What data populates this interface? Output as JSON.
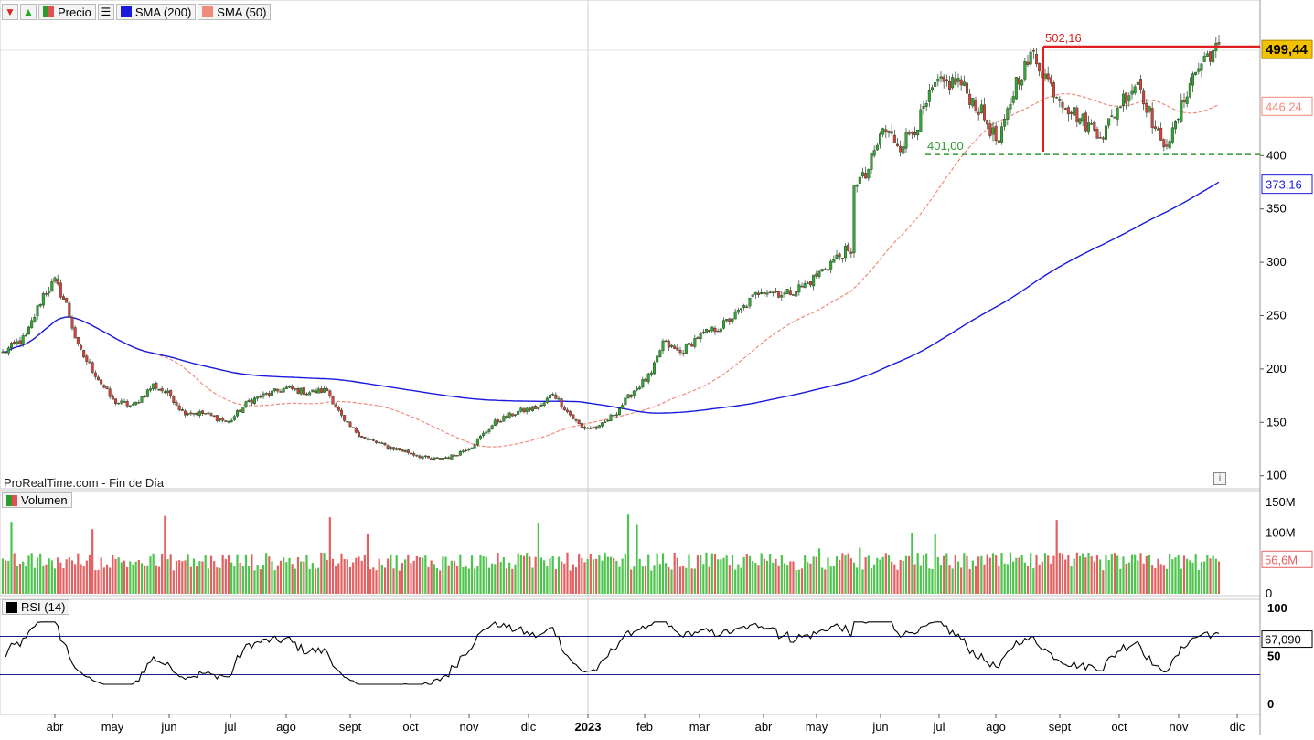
{
  "toolbar": {
    "price_label": "Precio",
    "sma200_label": "SMA (200)",
    "sma50_label": "SMA (50)",
    "sma200_color": "#1a1adc",
    "sma50_color": "#f08a7a"
  },
  "watermark": "ProRealTime.com - Fin de Día",
  "chart_data": [
    {
      "type": "candlestick",
      "pane": "price",
      "y_axis_ticks": [
        100,
        150,
        200,
        250,
        300,
        350,
        400
      ],
      "ylim": [
        95,
        540
      ],
      "current_price_label": "499,44",
      "sma50_value_label": "446,24",
      "sma200_value_label": "373,16",
      "resistance": {
        "value": 502.16,
        "label": "502,16",
        "color": "#e02020"
      },
      "support": {
        "value": 401.0,
        "label": "401,00",
        "color": "#2e9a2e"
      },
      "x_axis_ticks": [
        "abr",
        "may",
        "jun",
        "jul",
        "ago",
        "sept",
        "oct",
        "nov",
        "dic",
        "2023",
        "feb",
        "mar",
        "abr",
        "may",
        "jun",
        "jul",
        "ago",
        "sept",
        "oct",
        "nov",
        "dic"
      ],
      "price_path_anchors": [
        [
          0,
          215
        ],
        [
          8,
          230
        ],
        [
          14,
          270
        ],
        [
          18,
          282
        ],
        [
          22,
          260
        ],
        [
          26,
          220
        ],
        [
          32,
          195
        ],
        [
          38,
          170
        ],
        [
          45,
          165
        ],
        [
          52,
          185
        ],
        [
          58,
          175
        ],
        [
          62,
          160
        ],
        [
          70,
          158
        ],
        [
          78,
          150
        ],
        [
          85,
          170
        ],
        [
          90,
          175
        ],
        [
          98,
          182
        ],
        [
          105,
          178
        ],
        [
          112,
          180
        ],
        [
          118,
          150
        ],
        [
          125,
          135
        ],
        [
          132,
          128
        ],
        [
          140,
          122
        ],
        [
          148,
          115
        ],
        [
          155,
          118
        ],
        [
          162,
          128
        ],
        [
          170,
          150
        ],
        [
          178,
          160
        ],
        [
          186,
          165
        ],
        [
          190,
          178
        ],
        [
          195,
          160
        ],
        [
          200,
          145
        ],
        [
          206,
          145
        ],
        [
          212,
          160
        ],
        [
          218,
          180
        ],
        [
          224,
          195
        ],
        [
          228,
          225
        ],
        [
          234,
          215
        ],
        [
          240,
          230
        ],
        [
          248,
          240
        ],
        [
          255,
          255
        ],
        [
          262,
          275
        ],
        [
          270,
          270
        ],
        [
          278,
          280
        ],
        [
          286,
          300
        ],
        [
          291,
          310
        ],
        [
          293,
          305
        ],
        [
          294,
          375
        ],
        [
          298,
          380
        ],
        [
          304,
          425
        ],
        [
          310,
          410
        ],
        [
          316,
          430
        ],
        [
          322,
          465
        ],
        [
          330,
          470
        ],
        [
          338,
          440
        ],
        [
          344,
          410
        ],
        [
          350,
          470
        ],
        [
          356,
          495
        ],
        [
          362,
          465
        ],
        [
          368,
          445
        ],
        [
          374,
          430
        ],
        [
          380,
          420
        ],
        [
          386,
          450
        ],
        [
          392,
          470
        ],
        [
          396,
          440
        ],
        [
          400,
          410
        ],
        [
          404,
          420
        ],
        [
          410,
          470
        ],
        [
          416,
          495
        ],
        [
          420,
          500
        ]
      ]
    },
    {
      "type": "bar",
      "pane": "volume",
      "title": "Volumen",
      "y_axis_ticks": [
        "150M",
        "100M",
        "0"
      ],
      "y_tick_values": [
        150,
        100,
        0
      ],
      "ylim": [
        0,
        160
      ],
      "current_label": "56,6M",
      "unit": "M"
    },
    {
      "type": "line",
      "pane": "rsi",
      "title": "RSI (14)",
      "y_axis_ticks": [
        100,
        50,
        0
      ],
      "ylim": [
        0,
        100
      ],
      "bands": [
        70,
        30
      ],
      "current_label": "67,090"
    }
  ]
}
